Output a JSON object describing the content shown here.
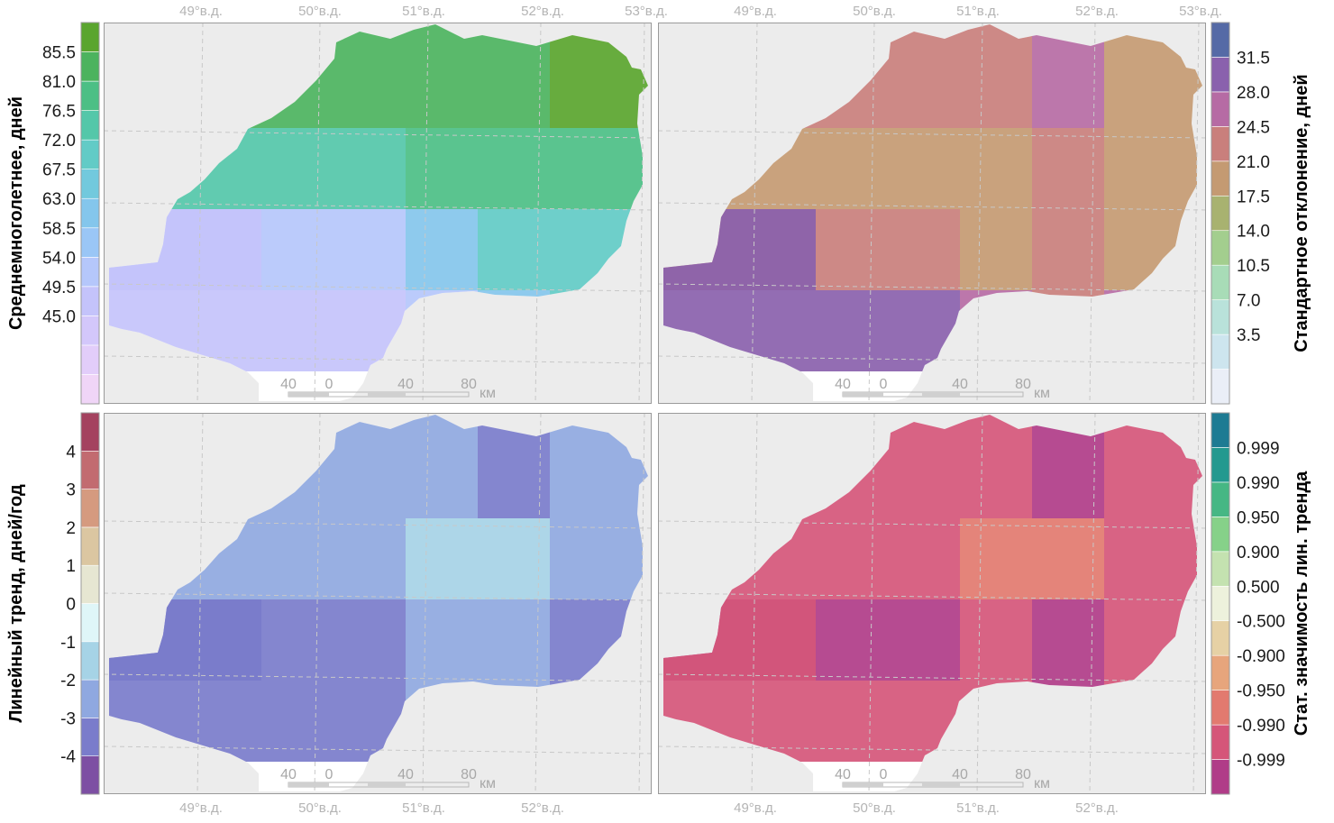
{
  "panels": {
    "mean": {
      "colorbar_title": "Среднемноголетнее, дней",
      "colorbar_ticks": [
        "85.5",
        "81.0",
        "76.5",
        "72.0",
        "67.5",
        "63.0",
        "58.5",
        "54.0",
        "49.5",
        "45.0"
      ],
      "colorbar_colors": [
        "#f0d5f7",
        "#e2cdfa",
        "#d3c7fb",
        "#c4c3fb",
        "#b5c7fb",
        "#9ac6f6",
        "#84c6ec",
        "#72c9dd",
        "#62cbc6",
        "#54c7a9",
        "#4cbf85",
        "#4cb35e",
        "#5aa52e"
      ],
      "lon_labels": [
        "49°в.д.",
        "50°в.д.",
        "51°в.д.",
        "52°в.д.",
        "53°в.д."
      ]
    },
    "std": {
      "colorbar_title": "Стандартное отклонение, дней",
      "colorbar_ticks": [
        "31.5",
        "28.0",
        "24.5",
        "21.0",
        "17.5",
        "14.0",
        "10.5",
        "7.0",
        "3.5"
      ],
      "colorbar_colors": [
        "#eaeef7",
        "#cde5ee",
        "#b9e2da",
        "#a8dcb7",
        "#a3ce8e",
        "#a8b270",
        "#c49a72",
        "#c97f7c",
        "#b66ba4",
        "#8a61ad",
        "#556aa6"
      ],
      "lon_labels": [
        "49°в.д.",
        "50°в.д.",
        "51°в.д.",
        "52°в.д.",
        "53°в.д."
      ]
    },
    "trend": {
      "colorbar_title": "Линейный тренд, дней/год",
      "colorbar_ticks": [
        "4",
        "3",
        "2",
        "1",
        "0",
        "-1",
        "-2",
        "-3",
        "-4"
      ],
      "colorbar_colors": [
        "#7d4fa3",
        "#7a7ccb",
        "#8fa8e0",
        "#a6d3e6",
        "#dff6f8",
        "#e6e6d2",
        "#dbc6a1",
        "#d59a7f",
        "#c26b70",
        "#a4425f"
      ],
      "lon_labels": [
        "49°в.д.",
        "50°в.д.",
        "51°в.д.",
        "52°в.д."
      ]
    },
    "signif": {
      "colorbar_title": "Стат. значимость лин. тренда",
      "colorbar_ticks": [
        "0.999",
        "0.990",
        "0.950",
        "0.900",
        "0.500",
        "-0.500",
        "-0.900",
        "-0.950",
        "-0.990",
        "-0.999"
      ],
      "colorbar_colors": [
        "#b03c88",
        "#d55679",
        "#e27a6f",
        "#e7a57c",
        "#e6d1a5",
        "#edf1dc",
        "#c4e2b0",
        "#86d189",
        "#46b784",
        "#23998f",
        "#1e7b93"
      ],
      "lon_labels": [
        "49°в.д.",
        "50°в.д.",
        "51°в.д.",
        "52°в.д."
      ]
    }
  },
  "scale_bar": {
    "labels": [
      "40",
      "0",
      "40",
      "80"
    ],
    "unit": "км"
  },
  "map_grid": {
    "mean": [
      [
        "#4cb35e",
        "#4cb35e",
        "#4cb35e",
        "#5aa52e"
      ],
      [
        "#54c7a9",
        "#4cbf85",
        "#4cbf85",
        "#4cbf85"
      ],
      [
        "#b5c7fb",
        "#84c6ec",
        "#62cbc6",
        "#62cbc6"
      ],
      [
        "#c4c3fb",
        "#b5c7fb",
        "#84c6ec",
        "#62cbc6"
      ],
      [
        null,
        "#e8ccfa",
        null,
        null
      ]
    ],
    "std": [
      [
        "#c97f7c",
        "#c97f7c",
        "#b66ba4",
        "#c49a72"
      ],
      [
        "#c49a72",
        "#c49a72",
        "#c97f7c",
        "#c49a72"
      ],
      [
        "#c97f7c",
        "#c49a72",
        "#c97f7c",
        "#c49a72"
      ],
      [
        "#8a61ad",
        "#b66ba4",
        "#c97f7c",
        "#b66ba4"
      ],
      [
        null,
        "#8a61ad",
        null,
        null
      ]
    ],
    "trend": [
      [
        "#8fa8e0",
        "#8fa8e0",
        "#7a7ccb",
        "#8fa8e0"
      ],
      [
        "#8fa8e0",
        "#a6d3e6",
        "#a6d3e6",
        "#8fa8e0"
      ],
      [
        "#7a7ccb",
        "#8fa8e0",
        "#8fa8e0",
        "#7a7ccb"
      ],
      [
        "#7a7ccb",
        "#8fa8e0",
        "#8fa8e0",
        "#7a7ccb"
      ],
      [
        null,
        "#7a7ccb",
        null,
        null
      ]
    ],
    "signif": [
      [
        "#d55679",
        "#d55679",
        "#b03c88",
        "#d55679"
      ],
      [
        "#d55679",
        "#e27a6f",
        "#e27a6f",
        "#d55679"
      ],
      [
        "#b03c88",
        "#d55679",
        "#b03c88",
        "#d55679"
      ],
      [
        "#d55679",
        "#d55679",
        "#b03c88",
        "#d55679"
      ],
      [
        null,
        "#b03c88",
        null,
        null
      ]
    ]
  }
}
